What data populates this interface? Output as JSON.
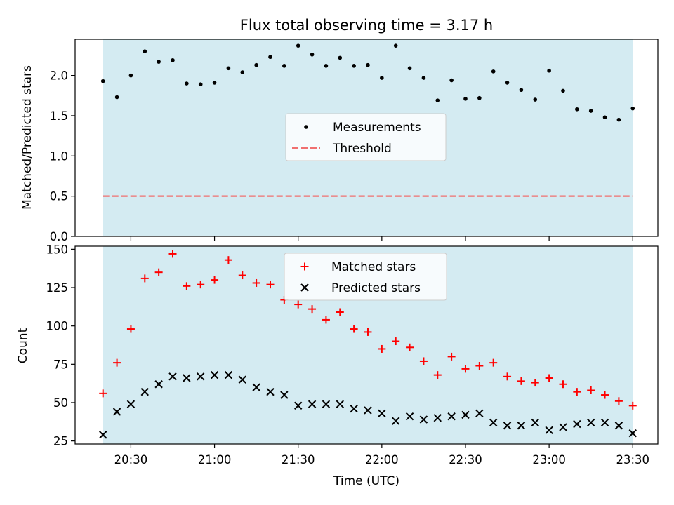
{
  "title": "Flux total observing time = 3.17 h",
  "chart_data": [
    {
      "type": "scatter",
      "ylabel": "Matched/Predicted stars",
      "xlabel": "",
      "ylim": [
        0,
        2.45
      ],
      "yticks": [
        0.0,
        0.5,
        1.0,
        1.5,
        2.0
      ],
      "ytick_labels": [
        "0.0",
        "0.5",
        "1.0",
        "1.5",
        "2.0"
      ],
      "observing_window": [
        "20:20",
        "23:30"
      ],
      "window_color": "#add8e6",
      "legend_position": "center",
      "series": [
        {
          "name": "Measurements",
          "marker": "dot",
          "color": "#000000",
          "x": [
            "20:20",
            "20:25",
            "20:30",
            "20:35",
            "20:40",
            "20:45",
            "20:50",
            "20:55",
            "21:00",
            "21:05",
            "21:10",
            "21:15",
            "21:20",
            "21:25",
            "21:30",
            "21:35",
            "21:40",
            "21:45",
            "21:50",
            "21:55",
            "22:00",
            "22:05",
            "22:10",
            "22:15",
            "22:20",
            "22:25",
            "22:30",
            "22:35",
            "22:40",
            "22:45",
            "22:50",
            "22:55",
            "23:00",
            "23:05",
            "23:10",
            "23:15",
            "23:20",
            "23:25",
            "23:30"
          ],
          "y": [
            1.93,
            1.73,
            2.0,
            2.3,
            2.17,
            2.19,
            1.9,
            1.89,
            1.91,
            2.09,
            2.04,
            2.13,
            2.23,
            2.12,
            2.37,
            2.26,
            2.12,
            2.22,
            2.12,
            2.13,
            1.97,
            2.37,
            2.09,
            1.97,
            1.69,
            1.94,
            1.71,
            1.72,
            2.05,
            1.91,
            1.82,
            1.7,
            2.06,
            1.81,
            1.58,
            1.56,
            1.48,
            1.45,
            1.59
          ]
        },
        {
          "name": "Threshold",
          "marker": "dashed-line",
          "color": "#f07070",
          "y_value": 0.5
        }
      ]
    },
    {
      "type": "scatter",
      "ylabel": "Count",
      "xlabel": "Time (UTC)",
      "ylim": [
        23,
        152
      ],
      "yticks": [
        25,
        50,
        75,
        100,
        125,
        150
      ],
      "ytick_labels": [
        "25",
        "50",
        "75",
        "100",
        "125",
        "150"
      ],
      "xticks": [
        "20:30",
        "21:00",
        "21:30",
        "22:00",
        "22:30",
        "23:00",
        "23:30"
      ],
      "xlim": [
        "20:10",
        "23:39"
      ],
      "observing_window": [
        "20:20",
        "23:30"
      ],
      "window_color": "#add8e6",
      "legend_position": "upper center",
      "series": [
        {
          "name": "Matched stars",
          "marker": "plus",
          "color": "#ff0000",
          "x": [
            "20:20",
            "20:25",
            "20:30",
            "20:35",
            "20:40",
            "20:45",
            "20:50",
            "20:55",
            "21:00",
            "21:05",
            "21:10",
            "21:15",
            "21:20",
            "21:25",
            "21:30",
            "21:35",
            "21:40",
            "21:45",
            "21:50",
            "21:55",
            "22:00",
            "22:05",
            "22:10",
            "22:15",
            "22:20",
            "22:25",
            "22:30",
            "22:35",
            "22:40",
            "22:45",
            "22:50",
            "22:55",
            "23:00",
            "23:05",
            "23:10",
            "23:15",
            "23:20",
            "23:25",
            "23:30"
          ],
          "y": [
            56,
            76,
            98,
            131,
            135,
            147,
            126,
            127,
            130,
            143,
            133,
            128,
            127,
            117,
            114,
            111,
            104,
            109,
            98,
            96,
            85,
            90,
            86,
            77,
            68,
            80,
            72,
            74,
            76,
            67,
            64,
            63,
            66,
            62,
            57,
            58,
            55,
            51,
            48
          ]
        },
        {
          "name": "Predicted stars",
          "marker": "x",
          "color": "#000000",
          "x": [
            "20:20",
            "20:25",
            "20:30",
            "20:35",
            "20:40",
            "20:45",
            "20:50",
            "20:55",
            "21:00",
            "21:05",
            "21:10",
            "21:15",
            "21:20",
            "21:25",
            "21:30",
            "21:35",
            "21:40",
            "21:45",
            "21:50",
            "21:55",
            "22:00",
            "22:05",
            "22:10",
            "22:15",
            "22:20",
            "22:25",
            "22:30",
            "22:35",
            "22:40",
            "22:45",
            "22:50",
            "22:55",
            "23:00",
            "23:05",
            "23:10",
            "23:15",
            "23:20",
            "23:25",
            "23:30"
          ],
          "y": [
            29,
            44,
            49,
            57,
            62,
            67,
            66,
            67,
            68,
            68,
            65,
            60,
            57,
            55,
            48,
            49,
            49,
            49,
            46,
            45,
            43,
            38,
            41,
            39,
            40,
            41,
            42,
            43,
            37,
            35,
            35,
            37,
            32,
            34,
            36,
            37,
            37,
            35,
            30
          ]
        }
      ]
    }
  ]
}
